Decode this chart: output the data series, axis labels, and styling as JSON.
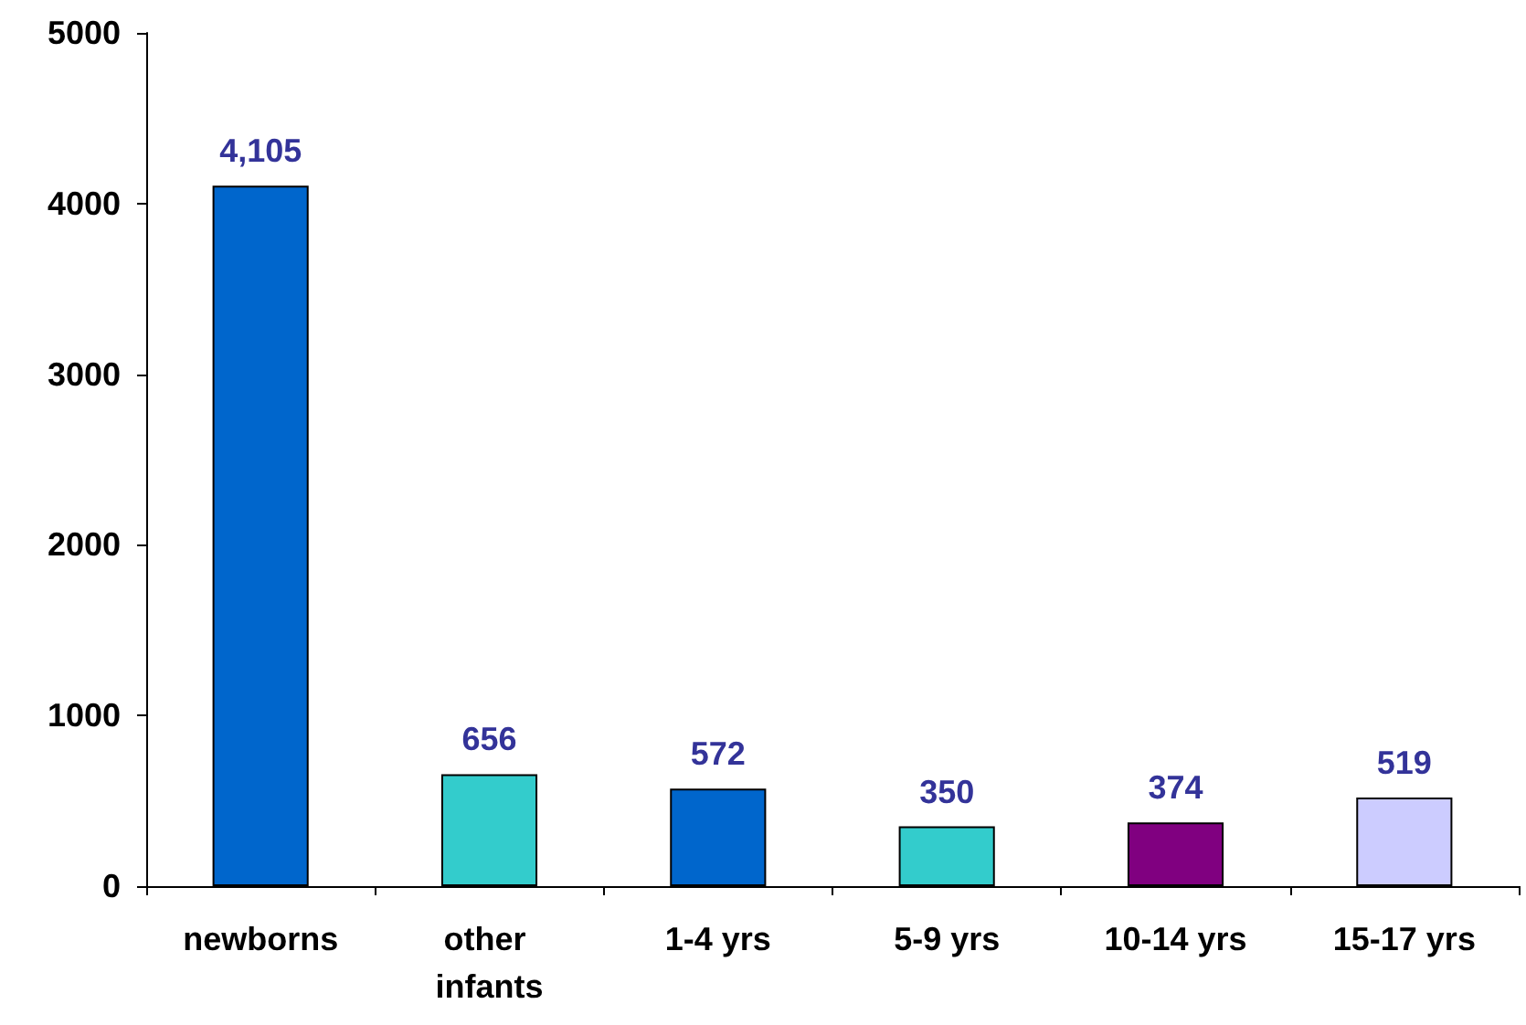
{
  "chart_data": {
    "type": "bar",
    "categories": [
      "newborns",
      "other infants",
      "1-4 yrs",
      "5-9 yrs",
      "10-14 yrs",
      "15-17 yrs"
    ],
    "values": [
      4105,
      656,
      572,
      350,
      374,
      519
    ],
    "colors": [
      "#0066cc",
      "#33cccc",
      "#0066cc",
      "#33cccc",
      "#800080",
      "#ccccff"
    ],
    "value_labels": [
      "4,105",
      "656",
      "572",
      "350",
      "374",
      "519"
    ],
    "ylim": [
      0,
      5000
    ],
    "yticks": [
      0,
      1000,
      2000,
      3000,
      4000,
      5000
    ],
    "grid": false
  }
}
